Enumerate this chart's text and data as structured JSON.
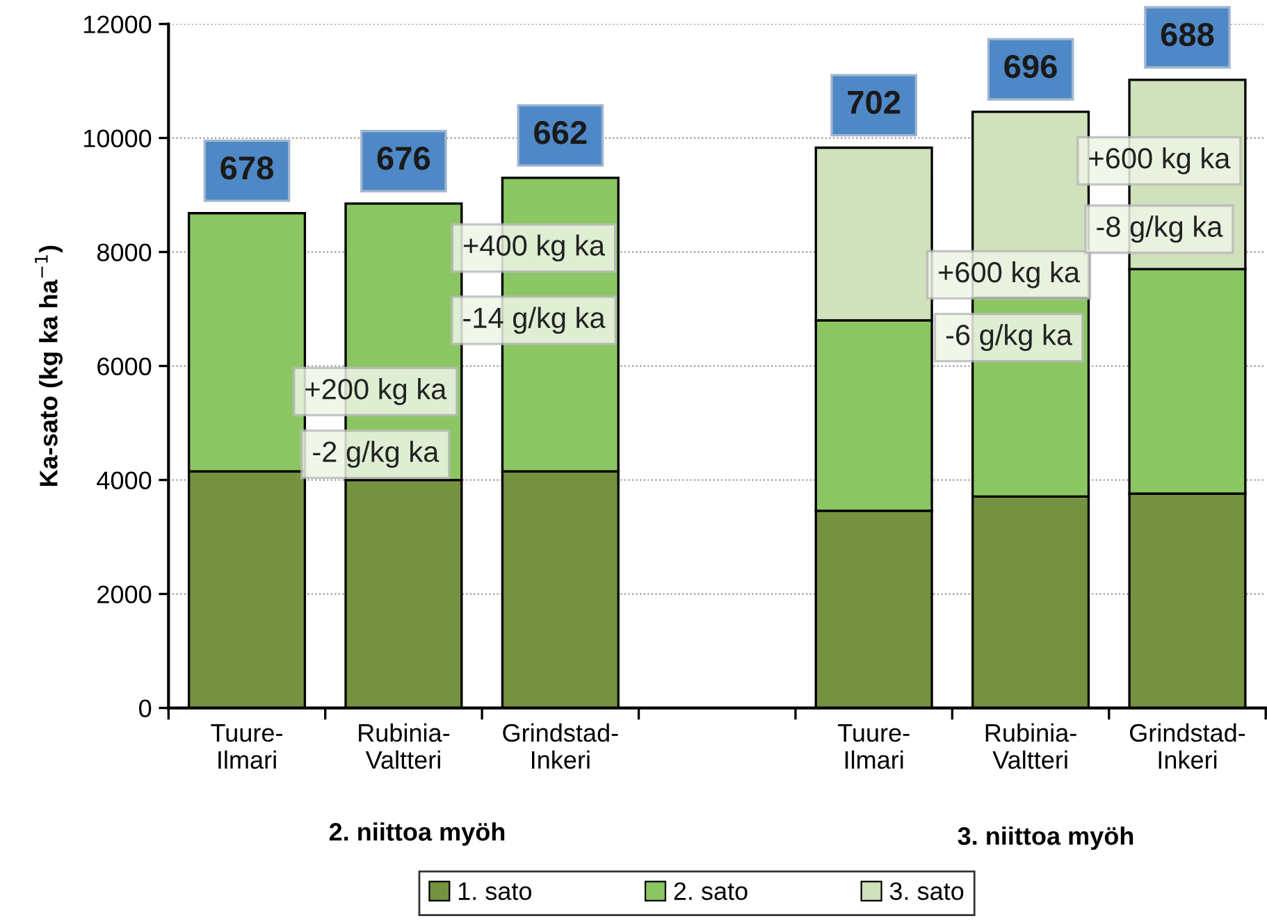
{
  "chart_data": {
    "type": "bar",
    "stacked": true,
    "ylabel": "Ka-sato (kg ka ha$^{−1}$)",
    "categories": [
      "Tuure-\nIlmari",
      "Rubinia-\nValtteri",
      "Grindstad-\nInkeri",
      null,
      "Tuure-\nIlmari",
      "Rubinia-\nValtteri",
      "Grindstad-\nInkeri"
    ],
    "series": [
      {
        "name": "1. sato",
        "color": "#74923f",
        "values": [
          4150,
          4000,
          4150,
          null,
          3460,
          3710,
          3760
        ]
      },
      {
        "name": "2. sato",
        "color": "#8bc663",
        "values": [
          4530,
          4850,
          5150,
          null,
          3340,
          3490,
          3940
        ]
      },
      {
        "name": "3. sato",
        "color": "#d0e1bb",
        "values": [
          null,
          null,
          null,
          null,
          3030,
          3260,
          3320
        ]
      }
    ],
    "ylim": [
      0,
      12000
    ],
    "yticks": [
      0,
      2000,
      4000,
      6000,
      8000,
      10000,
      12000
    ],
    "grid": "y",
    "legend": "bottom",
    "annotations": [
      "678",
      "676",
      "662",
      "702",
      "696",
      "688",
      "+200 kg ka",
      "-2 g/kg ka",
      "+400 kg ka",
      "-14 g/kg ka",
      "+600 kg ka",
      "-6 g/kg ka",
      "+600 kg ka",
      "-8 g/kg ka",
      "2. niittoa myöh",
      "3. niittoa myöh"
    ]
  }
}
